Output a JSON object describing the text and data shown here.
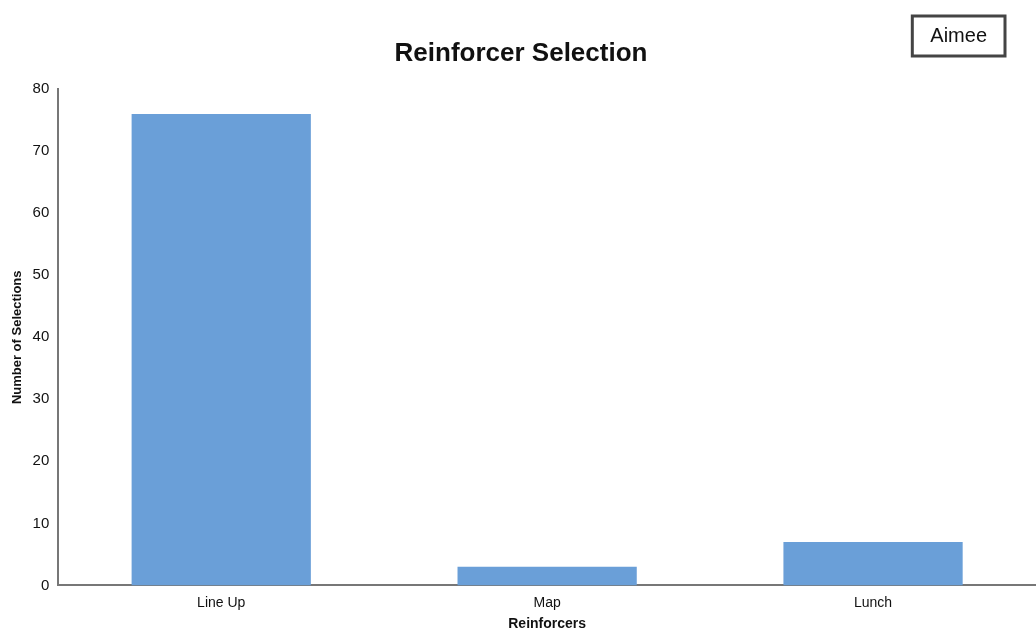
{
  "chart_data": {
    "type": "bar",
    "title": "Reinforcer Selection",
    "xlabel": "Reinforcers",
    "ylabel": "Number of Selections",
    "categories": [
      "Line Up",
      "Map",
      "Lunch"
    ],
    "values": [
      76,
      3,
      7
    ],
    "color": "#6a9fd8",
    "ylim": [
      0,
      80
    ],
    "yticks": [
      0,
      10,
      20,
      30,
      40,
      50,
      60,
      70,
      80
    ],
    "grid": false,
    "legend": false,
    "annotations": [
      "Aimee"
    ]
  }
}
